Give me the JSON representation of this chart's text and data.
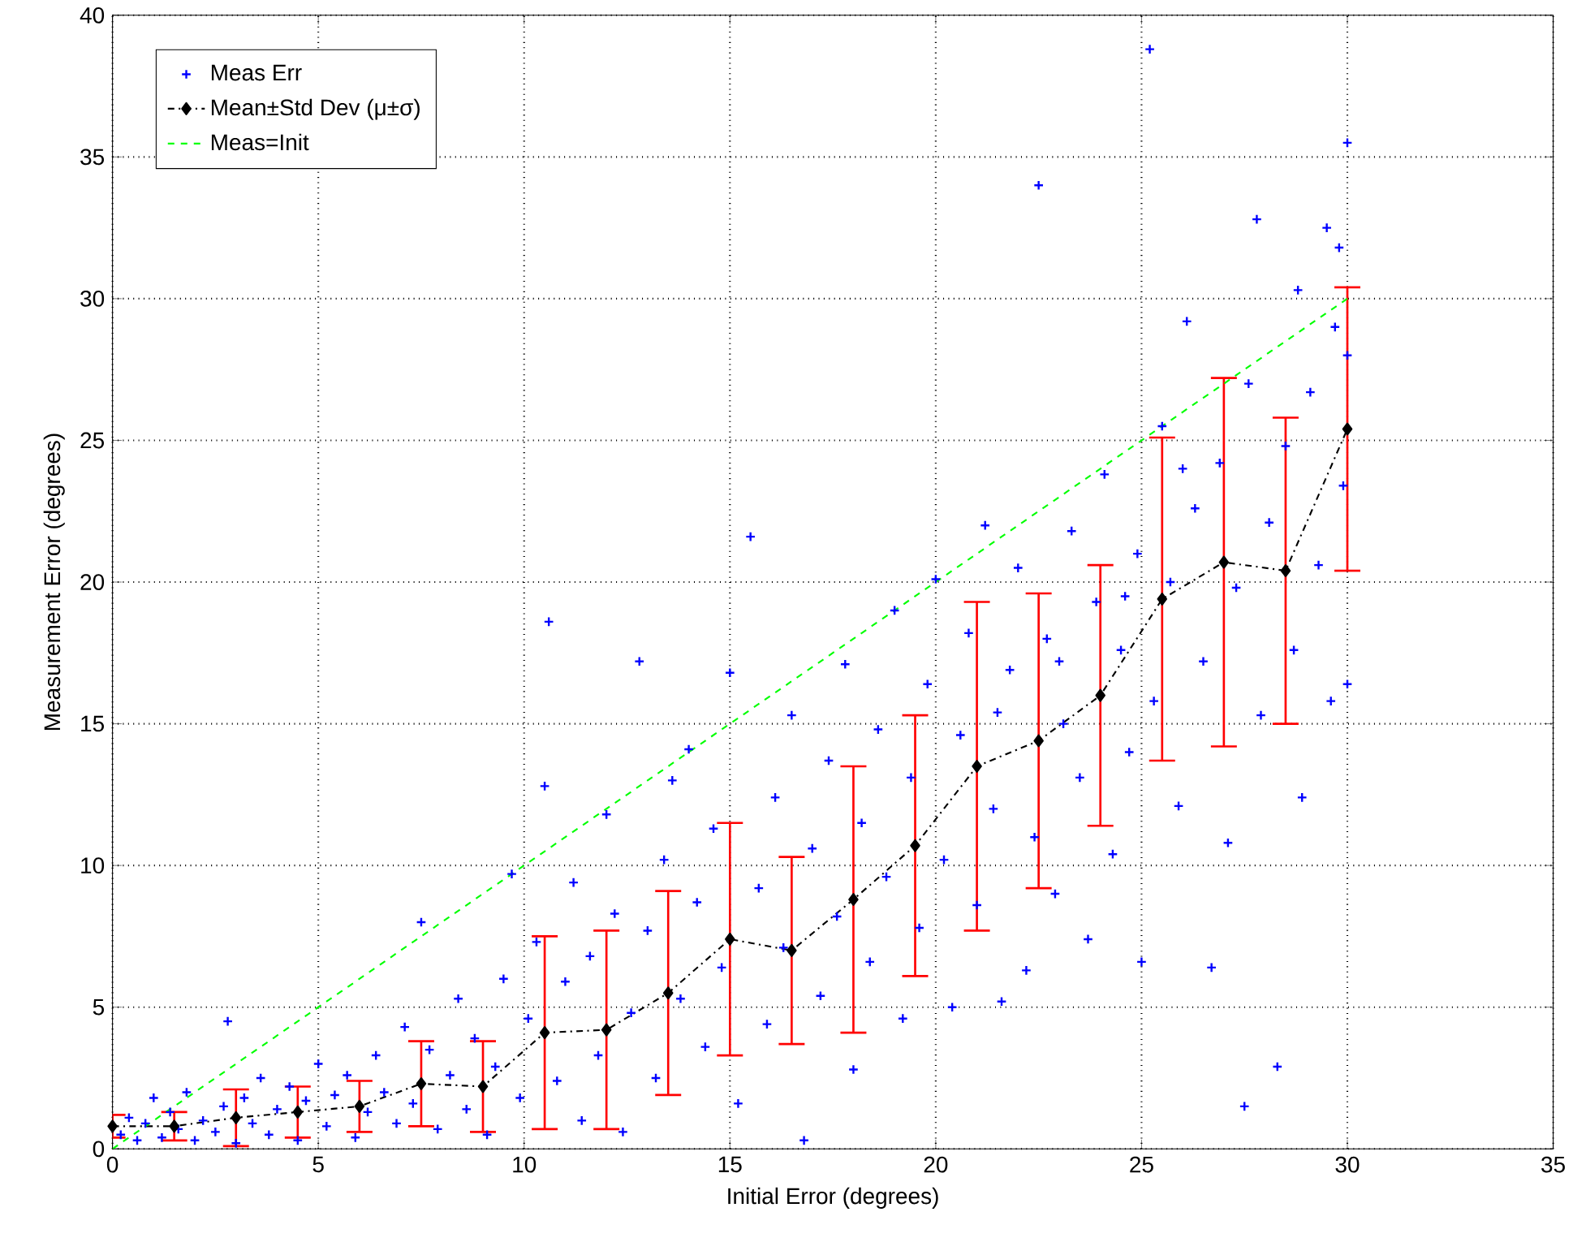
{
  "chart_data": {
    "type": "scatter",
    "xlabel": "Initial Error (degrees)",
    "ylabel": "Measurement Error (degrees)",
    "xlim": [
      0,
      35
    ],
    "ylim": [
      0,
      40
    ],
    "xticks": [
      0,
      5,
      10,
      15,
      20,
      25,
      30,
      35
    ],
    "yticks": [
      0,
      5,
      10,
      15,
      20,
      25,
      30,
      35,
      40
    ],
    "grid": true,
    "legend": "top left",
    "series": [
      {
        "name": "Meas Err",
        "color": "#0000ff",
        "marker": "cross",
        "x": [
          0.2,
          0.4,
          0.6,
          0.8,
          1.0,
          1.2,
          1.4,
          1.6,
          1.8,
          2.0,
          2.2,
          2.5,
          2.7,
          2.8,
          3.0,
          3.2,
          3.4,
          3.6,
          3.8,
          4.0,
          4.3,
          4.5,
          4.7,
          5.0,
          5.2,
          5.4,
          5.7,
          5.9,
          6.2,
          6.4,
          6.6,
          6.9,
          7.1,
          7.3,
          7.5,
          7.7,
          7.9,
          8.2,
          8.4,
          8.6,
          8.8,
          9.1,
          9.3,
          9.5,
          9.7,
          9.9,
          10.1,
          10.3,
          10.5,
          10.6,
          10.8,
          11.0,
          11.2,
          11.4,
          11.6,
          11.8,
          12.0,
          12.2,
          12.4,
          12.6,
          12.8,
          13.0,
          13.2,
          13.4,
          13.6,
          13.8,
          14.0,
          14.2,
          14.4,
          14.6,
          14.8,
          15.0,
          15.2,
          15.5,
          15.7,
          15.9,
          16.1,
          16.3,
          16.5,
          16.8,
          17.0,
          17.2,
          17.4,
          17.6,
          17.8,
          18.0,
          18.2,
          18.4,
          18.6,
          18.8,
          19.0,
          19.2,
          19.4,
          19.6,
          19.8,
          20.0,
          20.2,
          20.4,
          20.6,
          20.8,
          21.0,
          21.2,
          21.4,
          21.6,
          21.8,
          22.0,
          22.2,
          22.4,
          22.5,
          22.7,
          22.9,
          23.1,
          23.3,
          23.5,
          23.7,
          23.9,
          24.1,
          24.3,
          24.5,
          24.7,
          24.9,
          25.0,
          25.2,
          25.3,
          25.5,
          25.7,
          25.9,
          26.1,
          26.3,
          26.5,
          26.7,
          26.9,
          27.1,
          27.3,
          27.5,
          27.6,
          27.8,
          27.9,
          28.1,
          28.3,
          28.5,
          28.7,
          28.9,
          29.1,
          29.3,
          29.5,
          29.6,
          29.8,
          29.9,
          30.0,
          30.0,
          30.0,
          29.7,
          28.8,
          26.0,
          24.6,
          23.0,
          21.5
        ],
        "values": [
          0.5,
          1.1,
          0.3,
          0.9,
          1.8,
          0.4,
          1.3,
          0.7,
          2.0,
          0.3,
          1.0,
          0.6,
          1.5,
          4.5,
          0.2,
          1.8,
          0.9,
          2.5,
          0.5,
          1.4,
          2.2,
          0.3,
          1.7,
          3.0,
          0.8,
          1.9,
          2.6,
          0.4,
          1.3,
          3.3,
          2.0,
          0.9,
          4.3,
          1.6,
          8.0,
          3.5,
          0.7,
          2.6,
          5.3,
          1.4,
          3.9,
          0.5,
          2.9,
          6.0,
          9.7,
          1.8,
          4.6,
          7.3,
          12.8,
          18.6,
          2.4,
          5.9,
          9.4,
          1.0,
          6.8,
          3.3,
          11.8,
          8.3,
          0.6,
          4.8,
          17.2,
          7.7,
          2.5,
          10.2,
          13.0,
          5.3,
          14.1,
          8.7,
          3.6,
          11.3,
          6.4,
          16.8,
          1.6,
          21.6,
          9.2,
          4.4,
          12.4,
          7.1,
          15.3,
          0.3,
          10.6,
          5.4,
          13.7,
          8.2,
          17.1,
          2.8,
          11.5,
          6.6,
          14.8,
          9.6,
          19.0,
          4.6,
          13.1,
          7.8,
          16.4,
          20.1,
          10.2,
          5.0,
          14.6,
          18.2,
          8.6,
          22.0,
          12.0,
          5.2,
          16.9,
          20.5,
          6.3,
          11.0,
          34.0,
          18.0,
          9.0,
          15.0,
          21.8,
          13.1,
          7.4,
          19.3,
          23.8,
          10.4,
          17.6,
          14.0,
          21.0,
          6.6,
          38.8,
          15.8,
          25.5,
          20.0,
          12.1,
          29.2,
          22.6,
          17.2,
          6.4,
          24.2,
          10.8,
          19.8,
          1.5,
          27.0,
          32.8,
          15.3,
          22.1,
          2.9,
          24.8,
          17.6,
          12.4,
          26.7,
          20.6,
          32.5,
          15.8,
          31.8,
          23.4,
          35.5,
          16.4,
          28.0,
          29.0,
          30.3,
          24.0,
          19.5,
          17.2,
          15.4
        ]
      },
      {
        "name": "Mean±Std Dev (μ±σ)",
        "type": "line",
        "color": "#000000",
        "marker": "diamond",
        "line_style": "dashdot",
        "x": [
          0,
          1.5,
          3,
          4.5,
          6,
          7.5,
          9,
          10.5,
          12,
          13.5,
          15,
          16.5,
          18,
          19.5,
          21,
          22.5,
          24,
          25.5,
          27,
          28.5,
          30
        ],
        "values": [
          0.8,
          0.8,
          1.1,
          1.3,
          1.5,
          2.3,
          2.2,
          4.1,
          4.2,
          5.5,
          7.4,
          7.0,
          8.8,
          10.7,
          13.5,
          14.4,
          16.0,
          19.4,
          20.7,
          20.4,
          25.4
        ],
        "errors": [
          0.4,
          0.5,
          1.0,
          0.9,
          0.9,
          1.5,
          1.6,
          3.4,
          3.5,
          3.6,
          4.1,
          3.3,
          4.7,
          4.6,
          5.8,
          5.2,
          4.6,
          5.7,
          6.5,
          5.4,
          5.0
        ]
      },
      {
        "name": "Meas=Init",
        "type": "line",
        "color": "#00ff00",
        "marker": "none",
        "line_style": "dashed",
        "x": [
          0,
          30
        ],
        "values": [
          0,
          30
        ]
      }
    ]
  }
}
